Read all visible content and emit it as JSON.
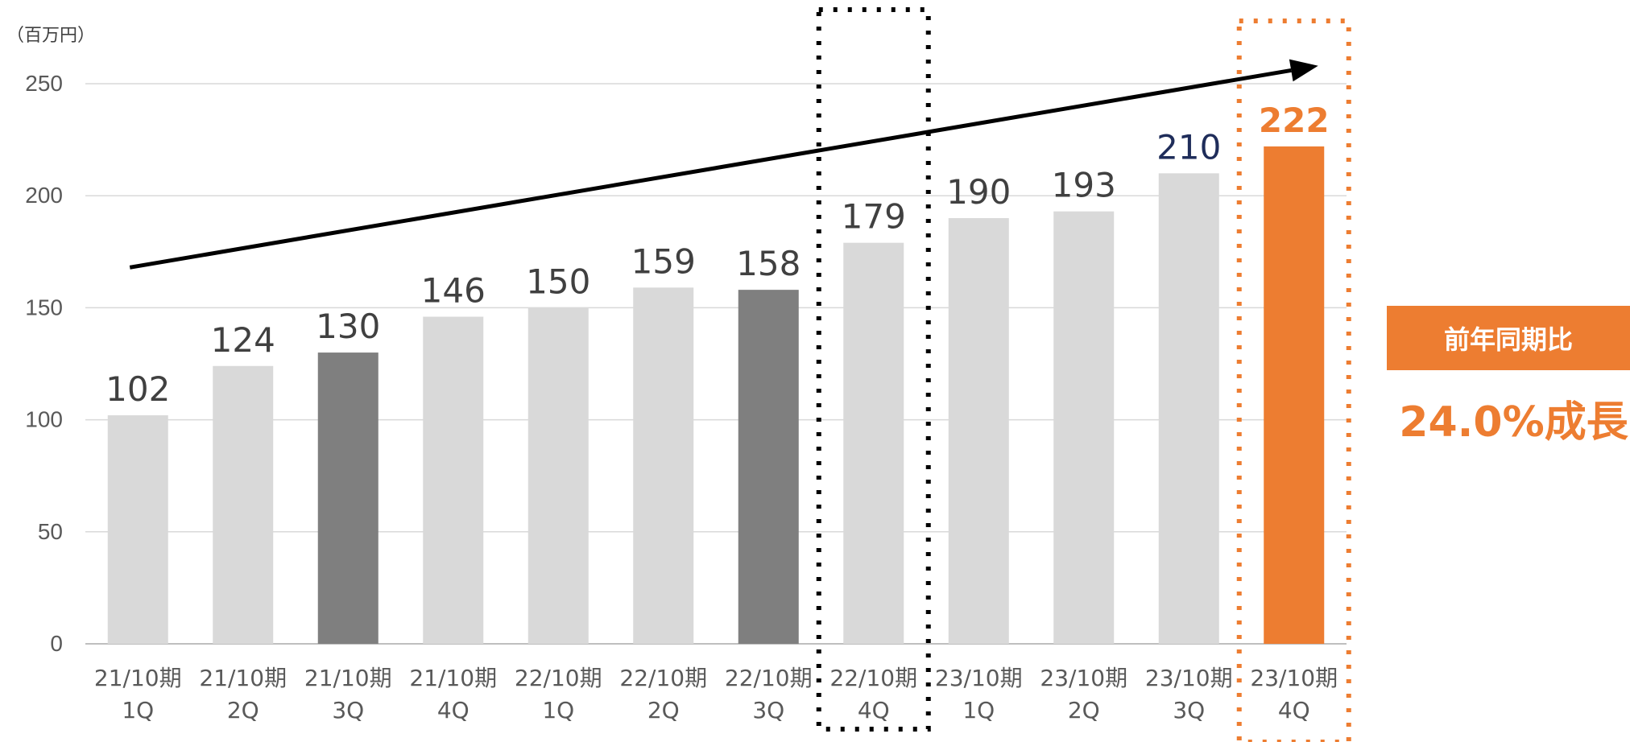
{
  "chart_data": {
    "type": "bar",
    "unit_label": "（百万円）",
    "categories": [
      [
        "21/10期",
        "1Q"
      ],
      [
        "21/10期",
        "2Q"
      ],
      [
        "21/10期",
        "3Q"
      ],
      [
        "21/10期",
        "4Q"
      ],
      [
        "22/10期",
        "1Q"
      ],
      [
        "22/10期",
        "2Q"
      ],
      [
        "22/10期",
        "3Q"
      ],
      [
        "22/10期",
        "4Q"
      ],
      [
        "23/10期",
        "1Q"
      ],
      [
        "23/10期",
        "2Q"
      ],
      [
        "23/10期",
        "3Q"
      ],
      [
        "23/10期",
        "4Q"
      ]
    ],
    "values": [
      102,
      124,
      130,
      146,
      150,
      159,
      158,
      179,
      190,
      193,
      210,
      222
    ],
    "bar_colors": [
      "#D9D9D9",
      "#D9D9D9",
      "#7F7F7F",
      "#D9D9D9",
      "#D9D9D9",
      "#D9D9D9",
      "#7F7F7F",
      "#D9D9D9",
      "#D9D9D9",
      "#D9D9D9",
      "#D9D9D9",
      "#ED7D31"
    ],
    "label_colors": [
      "#404040",
      "#404040",
      "#404040",
      "#404040",
      "#404040",
      "#404040",
      "#404040",
      "#404040",
      "#404040",
      "#404040",
      "#1F2D5A",
      "#ED7D31"
    ],
    "ylim": [
      0,
      250
    ],
    "yticks": [
      0,
      50,
      100,
      150,
      200,
      250
    ],
    "grid": true,
    "highlight_boxes": [
      {
        "category_index": 7,
        "color": "#000000"
      },
      {
        "category_index": 11,
        "color": "#ED7D31"
      }
    ],
    "trend_arrow": {
      "from": [
        0,
        168
      ],
      "to": [
        11,
        258
      ],
      "color": "#000000"
    },
    "annotation": {
      "title": "前年同期比",
      "text": "24.0%成長",
      "color": "#ED7D31"
    }
  }
}
